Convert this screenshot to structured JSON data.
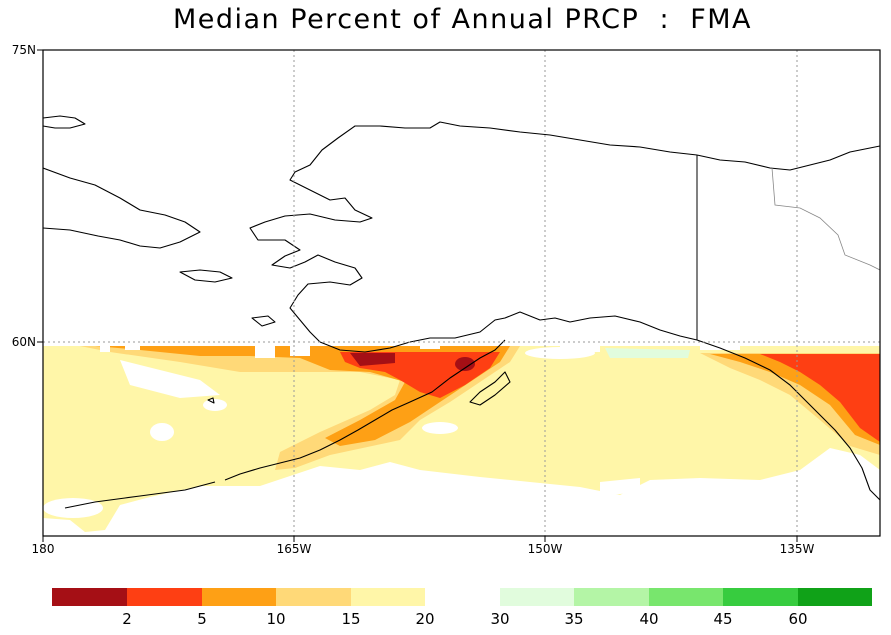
{
  "title": "Median Percent of Annual PRCP  :  FMA",
  "axes": {
    "lat_labels": [
      "75N",
      "60N"
    ],
    "lon_labels": [
      "180",
      "165W",
      "150W",
      "135W"
    ]
  },
  "colorbar": {
    "colors": [
      "#a50f15",
      "#fe3f13",
      "#fea015",
      "#ffd978",
      "#fff6a8",
      "#ffffff",
      "#e1fcdd",
      "#b4f5a6",
      "#78e66d",
      "#37cc3f",
      "#10a218"
    ],
    "tick_labels": [
      "2",
      "5",
      "10",
      "15",
      "20",
      "30",
      "35",
      "40",
      "45",
      "60"
    ]
  },
  "legend_colors": {
    "c2": "#a50f15",
    "c5": "#fe3f13",
    "c10": "#fea015",
    "c15": "#ffd978",
    "c20": "#fff6a8",
    "c35": "#e1fcdd"
  }
}
